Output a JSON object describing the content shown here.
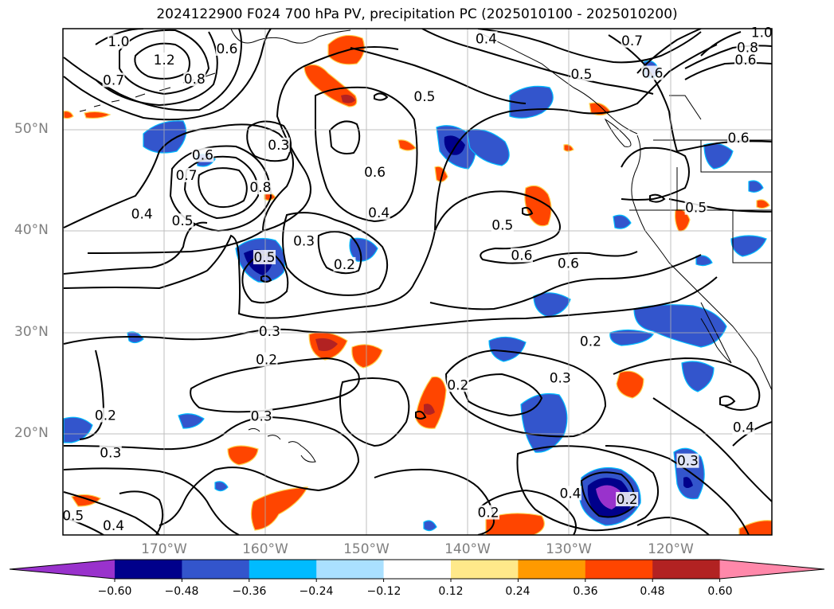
{
  "title": "2024122900 F024 700 hPa PV, precipitation PC (2025010100 - 2025010200)",
  "map": {
    "lon_range": [
      -180,
      -110
    ],
    "lat_range": [
      10,
      60
    ],
    "projection": "PlateCarree",
    "gridlines": true,
    "coastlines": true
  },
  "axes": {
    "lat_ticks": [
      {
        "value": 50,
        "label": "50°N"
      },
      {
        "value": 40,
        "label": "40°N"
      },
      {
        "value": 30,
        "label": "30°N"
      },
      {
        "value": 20,
        "label": "20°N"
      }
    ],
    "lon_ticks": [
      {
        "value": -170,
        "label": "170°W"
      },
      {
        "value": -160,
        "label": "160°W"
      },
      {
        "value": -150,
        "label": "150°W"
      },
      {
        "value": -140,
        "label": "140°W"
      },
      {
        "value": -130,
        "label": "130°W"
      },
      {
        "value": -120,
        "label": "120°W"
      }
    ]
  },
  "colorbar": {
    "extend": "both",
    "under_color": "#9932cc",
    "over_color": "#ff88aa",
    "colors": [
      "#00008b",
      "#3355cc",
      "#00bbff",
      "#aae0ff",
      "#ffffff",
      "#ffe98a",
      "#ff9a00",
      "#ff4500",
      "#b22222"
    ],
    "ticks": [
      "−0.60",
      "−0.48",
      "−0.36",
      "−0.24",
      "−0.12",
      "0.12",
      "0.24",
      "0.36",
      "0.48",
      "0.60"
    ]
  },
  "contour_labels": [
    {
      "text": "1.0",
      "lon": -174.5,
      "lat": 58.5
    },
    {
      "text": "1.2",
      "lon": -170.0,
      "lat": 56.7
    },
    {
      "text": "0.7",
      "lon": -175.0,
      "lat": 54.7
    },
    {
      "text": "0.6",
      "lon": -163.8,
      "lat": 57.8
    },
    {
      "text": "0.8",
      "lon": -167.0,
      "lat": 54.8
    },
    {
      "text": "0.4",
      "lon": -138.2,
      "lat": 58.8
    },
    {
      "text": "0.7",
      "lon": -123.8,
      "lat": 58.6
    },
    {
      "text": "0.6",
      "lon": -121.8,
      "lat": 55.4
    },
    {
      "text": "0.5",
      "lon": -128.8,
      "lat": 55.3
    },
    {
      "text": "0.8",
      "lon": -112.4,
      "lat": 57.9
    },
    {
      "text": "0.6",
      "lon": -112.6,
      "lat": 56.7
    },
    {
      "text": "1.0",
      "lon": -111.0,
      "lat": 59.4
    },
    {
      "text": "0.5",
      "lon": -144.3,
      "lat": 53.1
    },
    {
      "text": "0.3",
      "lon": -158.7,
      "lat": 48.3
    },
    {
      "text": "0.6",
      "lon": -166.2,
      "lat": 47.3
    },
    {
      "text": "0.7",
      "lon": -167.8,
      "lat": 45.3
    },
    {
      "text": "0.8",
      "lon": -160.5,
      "lat": 44.1
    },
    {
      "text": "0.6",
      "lon": -149.2,
      "lat": 45.6
    },
    {
      "text": "0.4",
      "lon": -172.2,
      "lat": 41.5
    },
    {
      "text": "0.5",
      "lon": -168.2,
      "lat": 40.8
    },
    {
      "text": "0.4",
      "lon": -148.8,
      "lat": 41.6
    },
    {
      "text": "0.5",
      "lon": -136.6,
      "lat": 40.4
    },
    {
      "text": "0.3",
      "lon": -156.2,
      "lat": 38.8
    },
    {
      "text": "0.2",
      "lon": -152.2,
      "lat": 36.5
    },
    {
      "text": "0.6",
      "lon": -134.7,
      "lat": 37.4
    },
    {
      "text": "0.6",
      "lon": -130.1,
      "lat": 36.6
    },
    {
      "text": "0.5",
      "lon": -160.1,
      "lat": 37.2
    },
    {
      "text": "0.3",
      "lon": -159.6,
      "lat": 29.9
    },
    {
      "text": "0.2",
      "lon": -159.9,
      "lat": 27.1
    },
    {
      "text": "0.2",
      "lon": -127.9,
      "lat": 28.9
    },
    {
      "text": "0.3",
      "lon": -130.9,
      "lat": 25.3
    },
    {
      "text": "0.2",
      "lon": -141.0,
      "lat": 24.6
    },
    {
      "text": "0.2",
      "lon": -175.8,
      "lat": 21.6
    },
    {
      "text": "0.3",
      "lon": -175.3,
      "lat": 17.9
    },
    {
      "text": "0.3",
      "lon": -160.4,
      "lat": 21.5
    },
    {
      "text": "0.5",
      "lon": -179.0,
      "lat": 11.7
    },
    {
      "text": "0.4",
      "lon": -175.0,
      "lat": 10.7
    },
    {
      "text": "0.4",
      "lon": -112.8,
      "lat": 20.4
    },
    {
      "text": "0.3",
      "lon": -118.3,
      "lat": 17.1
    },
    {
      "text": "0.4",
      "lon": -129.9,
      "lat": 13.9
    },
    {
      "text": "0.2",
      "lon": -124.3,
      "lat": 13.3
    },
    {
      "text": "0.2",
      "lon": -138.0,
      "lat": 12.0
    },
    {
      "text": "0.6",
      "lon": -113.3,
      "lat": 49.0
    },
    {
      "text": "0.5",
      "lon": -117.5,
      "lat": 42.1
    }
  ]
}
